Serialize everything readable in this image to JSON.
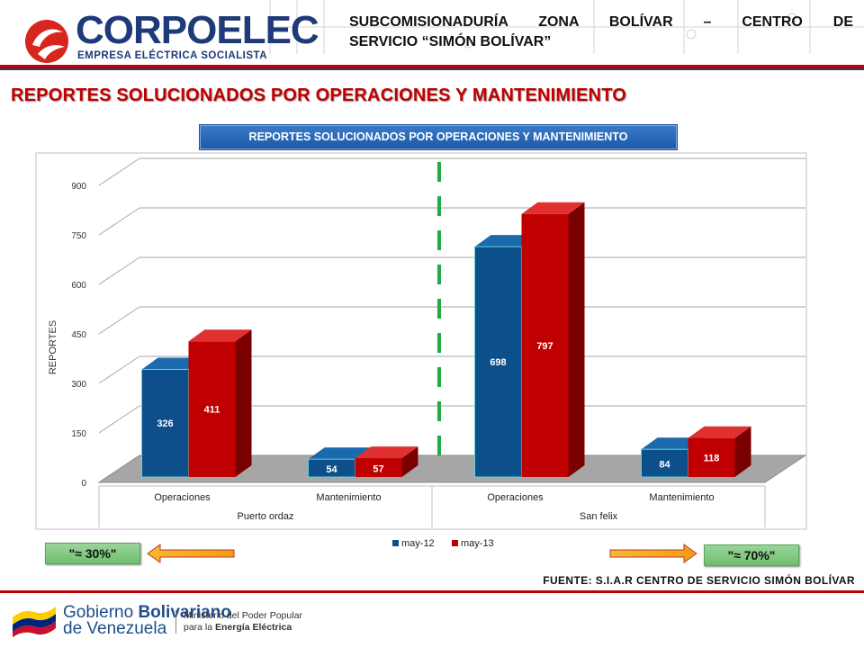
{
  "header": {
    "logo_name": "CORPOELEC",
    "logo_subtitle": "EMPRESA ELÉCTRICA SOCIALISTA",
    "title_line1": "SUBCOMISIONADURÍA ZONA BOLÍVAR – CENTRO DE",
    "title_line2": "SERVICIO “SIMÓN BOLÍVAR”"
  },
  "page_title": "REPORTES SOLUCIONADOS POR OPERACIONES Y MANTENIMIENTO",
  "chart_banner": "REPORTES SOLUCIONADOS POR OPERACIONES Y MANTENIMIENTO",
  "chart_data": {
    "type": "bar",
    "title": "REPORTES SOLUCIONADOS POR OPERACIONES Y MANTENIMIENTO",
    "ylabel": "REPORTES",
    "ylim": [
      0,
      900
    ],
    "yticks": [
      0,
      150,
      300,
      450,
      600,
      750,
      900
    ],
    "groups": [
      "Puerto ordaz",
      "San felix"
    ],
    "categories": [
      "Operaciones",
      "Mantenimiento",
      "Operaciones",
      "Mantenimiento"
    ],
    "category_group": [
      0,
      0,
      1,
      1
    ],
    "series": [
      {
        "name": "may-12",
        "values": [
          326,
          54,
          698,
          84
        ],
        "color": "#0d4f8a"
      },
      {
        "name": "may-13",
        "values": [
          411,
          57,
          797,
          118
        ],
        "color": "#c00000"
      }
    ],
    "legend_position": "bottom",
    "grid": true
  },
  "annotations": {
    "left_pill": "\"≈ 30%\"",
    "right_pill": "\"≈ 70%\""
  },
  "source": "FUENTE: S.I.A.R CENTRO DE SERVICIO SIMÓN BOLÍVAR",
  "footer": {
    "gov_line1_a": "Gobierno ",
    "gov_line1_b": "Bolivariano",
    "gov_line2": "de Venezuela",
    "ministry_line1": "Ministerio del Poder Popular",
    "ministry_line2a": "para la ",
    "ministry_line2b": "Energía Eléctrica"
  }
}
